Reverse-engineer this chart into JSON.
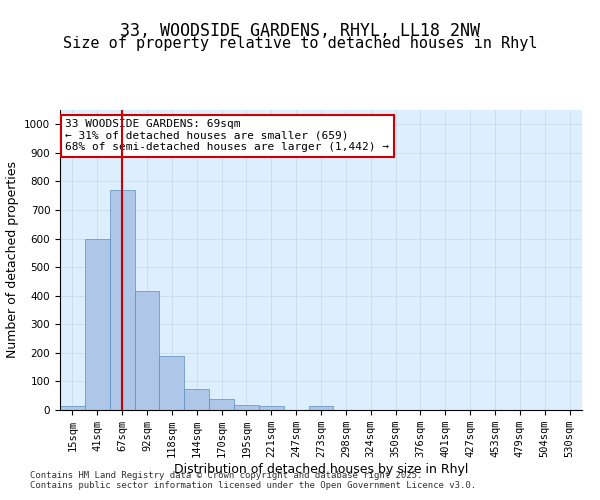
{
  "title_line1": "33, WOODSIDE GARDENS, RHYL, LL18 2NW",
  "title_line2": "Size of property relative to detached houses in Rhyl",
  "xlabel": "Distribution of detached houses by size in Rhyl",
  "ylabel": "Number of detached properties",
  "categories": [
    "15sqm",
    "41sqm",
    "67sqm",
    "92sqm",
    "118sqm",
    "144sqm",
    "170sqm",
    "195sqm",
    "221sqm",
    "247sqm",
    "273sqm",
    "298sqm",
    "324sqm",
    "350sqm",
    "376sqm",
    "401sqm",
    "427sqm",
    "453sqm",
    "479sqm",
    "504sqm",
    "530sqm"
  ],
  "values": [
    15,
    600,
    770,
    415,
    190,
    75,
    38,
    17,
    13,
    0,
    15,
    0,
    0,
    0,
    0,
    0,
    0,
    0,
    0,
    0,
    0
  ],
  "bar_color": "#aec6e8",
  "bar_edge_color": "#5a8fc0",
  "vline_x": 2,
  "vline_color": "#cc0000",
  "annotation_text": "33 WOODSIDE GARDENS: 69sqm\n← 31% of detached houses are smaller (659)\n68% of semi-detached houses are larger (1,442) →",
  "annotation_box_color": "#cc0000",
  "annotation_bg": "#ffffff",
  "ylim": [
    0,
    1050
  ],
  "yticks": [
    0,
    100,
    200,
    300,
    400,
    500,
    600,
    700,
    800,
    900,
    1000
  ],
  "grid_color": "#ccddee",
  "bg_color": "#ddeeff",
  "footer_text": "Contains HM Land Registry data © Crown copyright and database right 2025.\nContains public sector information licensed under the Open Government Licence v3.0.",
  "title_fontsize": 12,
  "subtitle_fontsize": 11,
  "xlabel_fontsize": 9,
  "ylabel_fontsize": 9,
  "tick_fontsize": 7.5,
  "annotation_fontsize": 8,
  "footer_fontsize": 6.5
}
